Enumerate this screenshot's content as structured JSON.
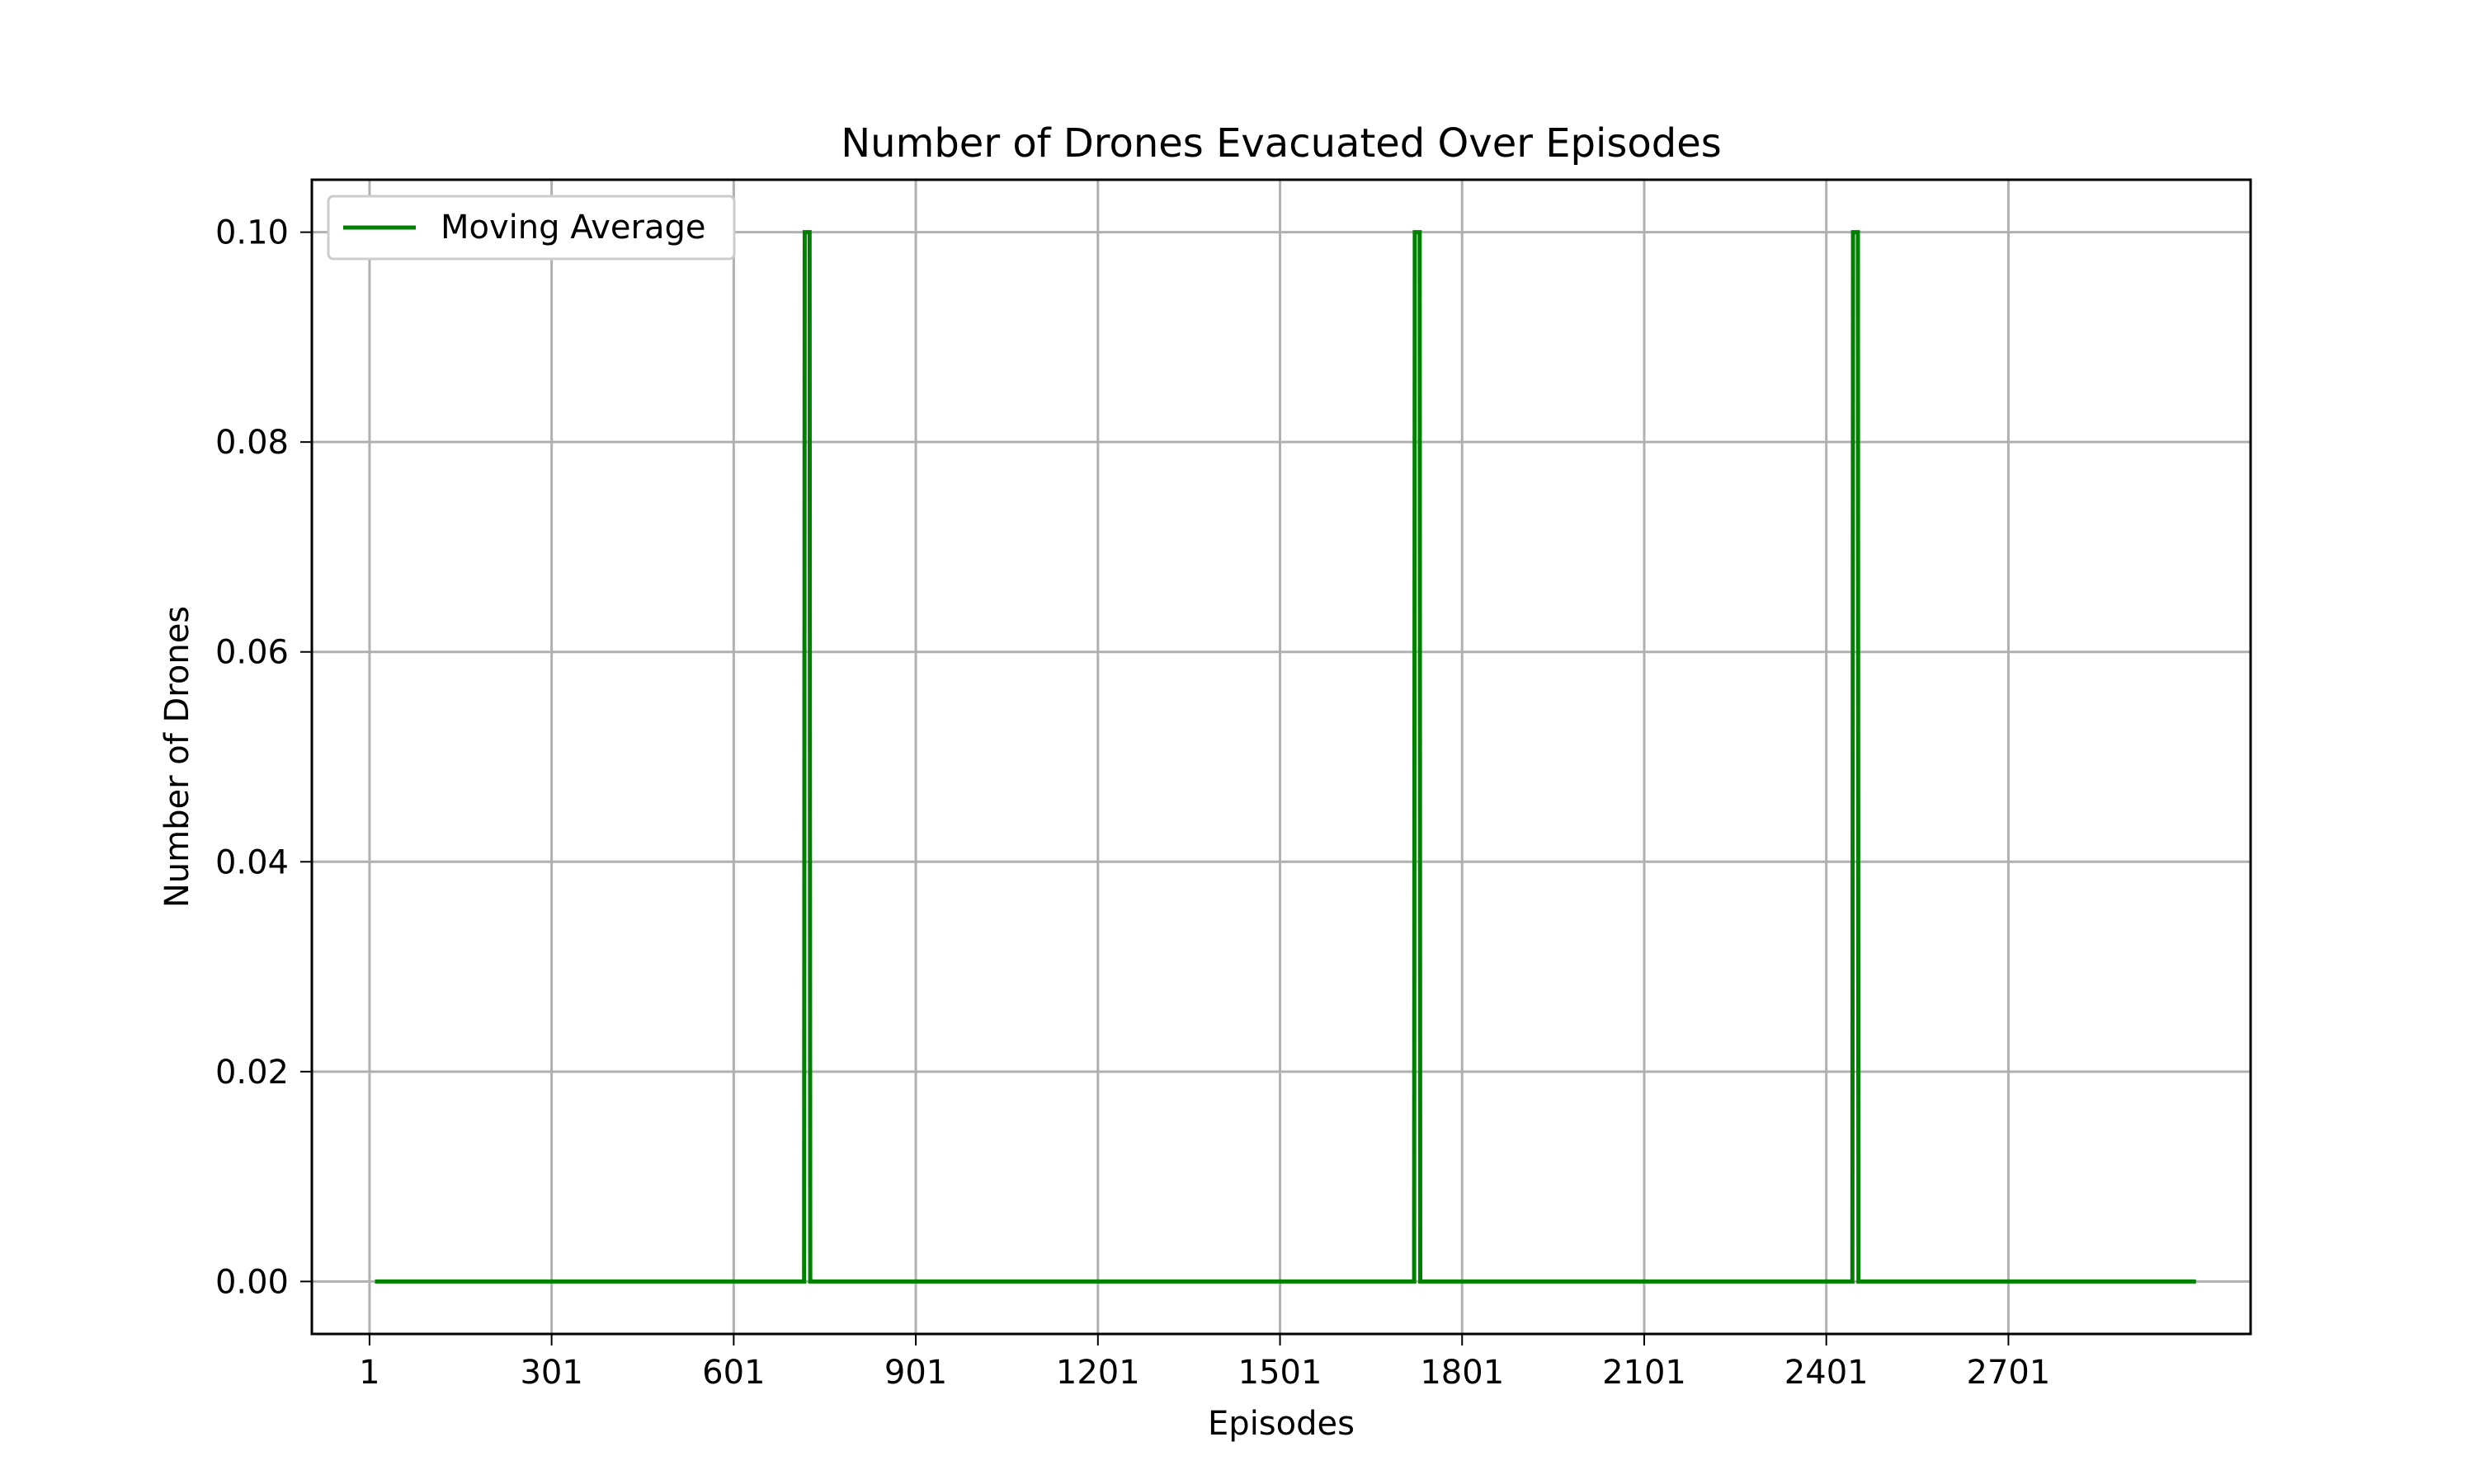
{
  "chart_data": {
    "type": "line",
    "title": "Number of Drones Evacuated Over Episodes",
    "xlabel": "Episodes",
    "ylabel": "Number of Drones",
    "xlim": [
      -94,
      3100
    ],
    "ylim": [
      -0.005,
      0.105
    ],
    "x_ticks": [
      1,
      301,
      601,
      901,
      1201,
      1501,
      1801,
      2101,
      2401,
      2701
    ],
    "x_tick_labels": [
      "1",
      "301",
      "601",
      "901",
      "1201",
      "1501",
      "1801",
      "2101",
      "2401",
      "2701"
    ],
    "y_ticks": [
      0.0,
      0.02,
      0.04,
      0.06,
      0.08,
      0.1
    ],
    "y_tick_labels": [
      "0.00",
      "0.02",
      "0.04",
      "0.06",
      "0.08",
      "0.10"
    ],
    "grid": true,
    "legend_position": "top-left",
    "series": [
      {
        "name": "Moving Average",
        "color": "#008000",
        "x": [
          10,
          717,
          718,
          726,
          727,
          1722,
          1723,
          1731,
          1732,
          2444,
          2445,
          2453,
          2454,
          3010
        ],
        "values": [
          0,
          0,
          0.1,
          0.1,
          0,
          0,
          0.1,
          0.1,
          0,
          0,
          0.1,
          0.1,
          0,
          0
        ]
      }
    ]
  }
}
